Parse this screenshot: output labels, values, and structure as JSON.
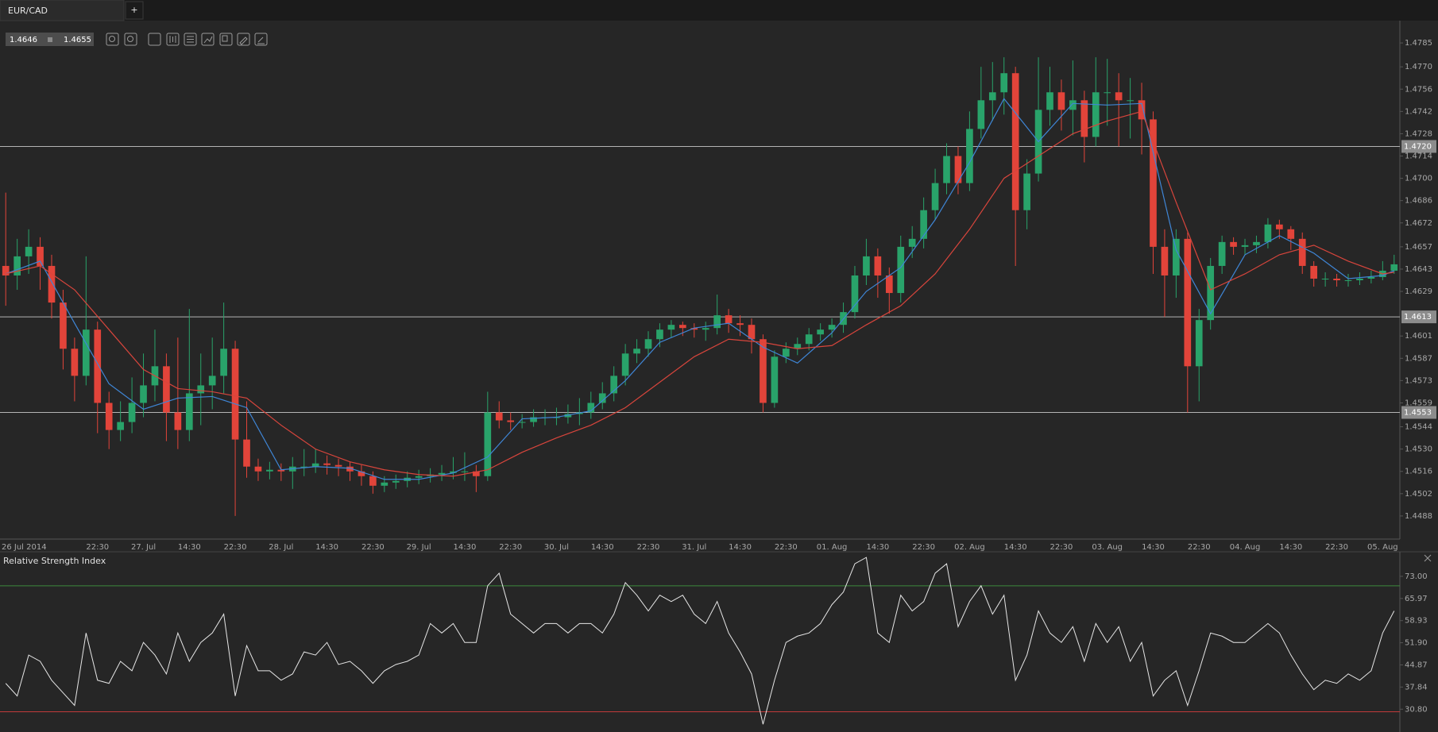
{
  "tab": {
    "title": "EUR/CAD",
    "add": "+"
  },
  "quote": {
    "bid": "1.4646",
    "ask": "1.4655"
  },
  "chart_data": [
    {
      "type": "candlestick",
      "up_color": "#29a36a",
      "down_color": "#e2443a",
      "categories": [
        null,
        "26 Jul 2014",
        null,
        null,
        null,
        null,
        null,
        null,
        "22:30",
        null,
        null,
        null,
        "27. Jul",
        null,
        null,
        null,
        "14:30",
        null,
        null,
        null,
        "22:30",
        null,
        null,
        null,
        "28. Jul",
        null,
        null,
        null,
        "14:30",
        null,
        null,
        null,
        "22:30",
        null,
        null,
        null,
        "29. Jul",
        null,
        null,
        null,
        "14:30",
        null,
        null,
        null,
        "22:30",
        null,
        null,
        null,
        "30. Jul",
        null,
        null,
        null,
        "14:30",
        null,
        null,
        null,
        "22:30",
        null,
        null,
        null,
        "31. Jul",
        null,
        null,
        null,
        "14:30",
        null,
        null,
        null,
        "22:30",
        null,
        null,
        null,
        "01. Aug",
        null,
        null,
        null,
        "14:30",
        null,
        null,
        null,
        "22:30",
        null,
        null,
        null,
        "02. Aug",
        null,
        null,
        null,
        "14:30",
        null,
        null,
        null,
        "22:30",
        null,
        null,
        null,
        "03. Aug",
        null,
        null,
        null,
        "14:30",
        null,
        null,
        null,
        "22:30",
        null,
        null,
        null,
        "04. Aug",
        null,
        null,
        null,
        "14:30",
        null,
        null,
        null,
        "22:30",
        null,
        null,
        null,
        "05. Aug",
        null
      ],
      "open": [
        1.4645,
        1.4639,
        1.4651,
        1.4657,
        1.4645,
        1.4622,
        1.4593,
        1.4576,
        1.4605,
        1.4559,
        1.4542,
        1.4547,
        1.4559,
        1.457,
        1.4582,
        1.4553,
        1.4542,
        1.4565,
        1.457,
        1.4576,
        1.4593,
        1.4536,
        1.4519,
        1.4516,
        1.4517,
        1.4516,
        1.4519,
        1.4519,
        1.4521,
        1.452,
        1.4519,
        1.4516,
        1.4513,
        1.4507,
        1.4509,
        1.451,
        1.4512,
        1.4513,
        1.4514,
        1.4515,
        1.4516,
        1.4516,
        1.4513,
        1.4553,
        1.4548,
        1.4547,
        1.4547,
        1.455,
        1.455,
        1.455,
        1.4552,
        1.4553,
        1.4559,
        1.4565,
        1.4576,
        1.459,
        1.4593,
        1.4599,
        1.4605,
        1.4608,
        1.4606,
        1.4605,
        1.4606,
        1.4614,
        1.4609,
        1.4608,
        1.4599,
        1.4559,
        1.4588,
        1.4593,
        1.4596,
        1.4602,
        1.4605,
        1.4608,
        1.4616,
        1.4639,
        1.4651,
        1.4639,
        1.4628,
        1.4657,
        1.4662,
        1.468,
        1.4697,
        1.4714,
        1.4697,
        1.4731,
        1.4749,
        1.4754,
        1.4766,
        1.468,
        1.4703,
        1.4743,
        1.4754,
        1.4743,
        1.4749,
        1.4726,
        1.4754,
        1.4754,
        1.4749,
        1.4749,
        1.4737,
        1.4657,
        1.4639,
        1.4662,
        1.4582,
        1.4611,
        1.4645,
        1.466,
        1.4657,
        1.4658,
        1.466,
        1.4671,
        1.4668,
        1.4662,
        1.4645,
        1.4637,
        1.4637,
        1.4636,
        1.4636,
        1.4637,
        1.4638,
        1.4642
      ],
      "high": [
        1.4691,
        1.4662,
        1.4668,
        1.4663,
        1.4652,
        1.463,
        1.46,
        1.4651,
        1.461,
        1.4566,
        1.456,
        1.4575,
        1.459,
        1.4605,
        1.459,
        1.46,
        1.4618,
        1.459,
        1.46,
        1.4622,
        1.4598,
        1.456,
        1.4524,
        1.4522,
        1.4521,
        1.4525,
        1.453,
        1.453,
        1.4526,
        1.4524,
        1.4522,
        1.452,
        1.4516,
        1.4513,
        1.4514,
        1.4516,
        1.4517,
        1.4518,
        1.452,
        1.4525,
        1.4528,
        1.452,
        1.4566,
        1.456,
        1.4553,
        1.4552,
        1.4555,
        1.4555,
        1.4556,
        1.4558,
        1.4562,
        1.4566,
        1.4572,
        1.4582,
        1.4596,
        1.4599,
        1.4604,
        1.4609,
        1.4611,
        1.461,
        1.4609,
        1.461,
        1.4627,
        1.4618,
        1.4614,
        1.4612,
        1.4602,
        1.4592,
        1.4597,
        1.46,
        1.4606,
        1.4609,
        1.4612,
        1.4622,
        1.4645,
        1.4662,
        1.4656,
        1.4644,
        1.4664,
        1.467,
        1.4688,
        1.4706,
        1.4722,
        1.472,
        1.4742,
        1.477,
        1.4773,
        1.4776,
        1.477,
        1.4712,
        1.4776,
        1.477,
        1.4762,
        1.4774,
        1.4755,
        1.4776,
        1.4775,
        1.4766,
        1.4763,
        1.476,
        1.4742,
        1.4668,
        1.4668,
        1.4666,
        1.4618,
        1.465,
        1.4664,
        1.4663,
        1.4662,
        1.4664,
        1.4675,
        1.4674,
        1.467,
        1.4666,
        1.4648,
        1.4641,
        1.464,
        1.464,
        1.4641,
        1.4642,
        1.4648,
        1.4652
      ],
      "low": [
        1.462,
        1.463,
        1.464,
        1.463,
        1.4612,
        1.458,
        1.456,
        1.457,
        1.454,
        1.453,
        1.4535,
        1.454,
        1.455,
        1.456,
        1.4535,
        1.453,
        1.4535,
        1.4545,
        1.4555,
        1.4565,
        1.4488,
        1.4512,
        1.451,
        1.4511,
        1.451,
        1.4505,
        1.4513,
        1.4515,
        1.4514,
        1.4513,
        1.451,
        1.4507,
        1.4502,
        1.4503,
        1.4505,
        1.4506,
        1.4508,
        1.4509,
        1.451,
        1.4511,
        1.451,
        1.4503,
        1.451,
        1.4543,
        1.4542,
        1.4543,
        1.4544,
        1.4545,
        1.4545,
        1.4546,
        1.4545,
        1.4549,
        1.4555,
        1.456,
        1.457,
        1.4584,
        1.4588,
        1.4594,
        1.46,
        1.4601,
        1.46,
        1.4598,
        1.4602,
        1.4603,
        1.4601,
        1.459,
        1.4553,
        1.4556,
        1.4584,
        1.4589,
        1.4592,
        1.4598,
        1.46,
        1.4603,
        1.4612,
        1.4633,
        1.4625,
        1.4615,
        1.4622,
        1.465,
        1.4656,
        1.4674,
        1.469,
        1.469,
        1.4692,
        1.4725,
        1.4736,
        1.474,
        1.4645,
        1.4668,
        1.4698,
        1.4733,
        1.473,
        1.4727,
        1.471,
        1.472,
        1.4733,
        1.472,
        1.4725,
        1.4715,
        1.464,
        1.4613,
        1.4625,
        1.4553,
        1.456,
        1.4605,
        1.464,
        1.4652,
        1.4652,
        1.4653,
        1.4656,
        1.4662,
        1.4655,
        1.464,
        1.4632,
        1.4632,
        1.4632,
        1.4632,
        1.4633,
        1.4634,
        1.4636,
        1.464
      ],
      "close": [
        1.4639,
        1.4651,
        1.4657,
        1.4645,
        1.4622,
        1.4593,
        1.4576,
        1.4605,
        1.4559,
        1.4542,
        1.4547,
        1.4559,
        1.457,
        1.4582,
        1.4553,
        1.4542,
        1.4565,
        1.457,
        1.4576,
        1.4593,
        1.4536,
        1.4519,
        1.4516,
        1.4517,
        1.4516,
        1.4519,
        1.4519,
        1.4521,
        1.452,
        1.4519,
        1.4516,
        1.4513,
        1.4507,
        1.4509,
        1.451,
        1.4512,
        1.4513,
        1.4514,
        1.4515,
        1.4516,
        1.4516,
        1.4513,
        1.4553,
        1.4548,
        1.4547,
        1.4547,
        1.455,
        1.455,
        1.455,
        1.4552,
        1.4553,
        1.4559,
        1.4565,
        1.4576,
        1.459,
        1.4593,
        1.4599,
        1.4605,
        1.4608,
        1.4606,
        1.4605,
        1.4606,
        1.4614,
        1.4609,
        1.4608,
        1.4599,
        1.4559,
        1.4588,
        1.4593,
        1.4596,
        1.4602,
        1.4605,
        1.4608,
        1.4616,
        1.4639,
        1.4651,
        1.4639,
        1.4628,
        1.4657,
        1.4662,
        1.468,
        1.4697,
        1.4714,
        1.4697,
        1.4731,
        1.4749,
        1.4754,
        1.4766,
        1.468,
        1.4703,
        1.4743,
        1.4754,
        1.4743,
        1.4749,
        1.4726,
        1.4754,
        1.4754,
        1.4749,
        1.4749,
        1.4737,
        1.4657,
        1.4639,
        1.4662,
        1.4582,
        1.4611,
        1.4645,
        1.466,
        1.4657,
        1.4658,
        1.466,
        1.4671,
        1.4668,
        1.4662,
        1.4645,
        1.4637,
        1.4637,
        1.4636,
        1.4636,
        1.4637,
        1.4638,
        1.4642,
        1.4646
      ],
      "lines": [
        {
          "color": "#3f86d6",
          "x": [
            0,
            3,
            6,
            9,
            12,
            15,
            18,
            21,
            24,
            27,
            30,
            33,
            36,
            39,
            42,
            45,
            48,
            51,
            54,
            57,
            60,
            63,
            66,
            69,
            72,
            75,
            78,
            81,
            84,
            87,
            90,
            93,
            96,
            99,
            102,
            105,
            108,
            111,
            114,
            117,
            120,
            121
          ],
          "values": [
            1.464,
            1.4648,
            1.4609,
            1.4571,
            1.4555,
            1.4562,
            1.4563,
            1.4556,
            1.4517,
            1.4519,
            1.4518,
            1.4511,
            1.4511,
            1.4515,
            1.4525,
            1.4549,
            1.455,
            1.4554,
            1.4573,
            1.4597,
            1.4606,
            1.4609,
            1.4594,
            1.4584,
            1.4603,
            1.4629,
            1.4644,
            1.4674,
            1.471,
            1.475,
            1.4723,
            1.4747,
            1.4746,
            1.4747,
            1.4655,
            1.4615,
            1.4652,
            1.4664,
            1.4653,
            1.4637,
            1.4639,
            1.4642
          ]
        },
        {
          "color": "#d8453c",
          "x": [
            0,
            3,
            6,
            9,
            12,
            15,
            18,
            21,
            24,
            27,
            30,
            33,
            36,
            39,
            42,
            45,
            48,
            51,
            54,
            57,
            60,
            63,
            66,
            69,
            72,
            75,
            78,
            81,
            84,
            87,
            90,
            93,
            96,
            99,
            102,
            105,
            108,
            111,
            114,
            117,
            120,
            121
          ],
          "values": [
            1.464,
            1.4645,
            1.463,
            1.4605,
            1.458,
            1.4568,
            1.4566,
            1.4562,
            1.4545,
            1.453,
            1.4522,
            1.4517,
            1.4514,
            1.4513,
            1.4517,
            1.4528,
            1.4537,
            1.4545,
            1.4556,
            1.4572,
            1.4588,
            1.4599,
            1.4597,
            1.4593,
            1.4595,
            1.4608,
            1.462,
            1.464,
            1.4668,
            1.47,
            1.4714,
            1.4728,
            1.4736,
            1.4742,
            1.4685,
            1.463,
            1.464,
            1.4652,
            1.4658,
            1.4648,
            1.464,
            1.4641
          ]
        }
      ],
      "levels": [
        {
          "value": 1.472,
          "label": "1.4720"
        },
        {
          "value": 1.4613,
          "label": "1.4613"
        },
        {
          "value": 1.4553,
          "label": "1.4553"
        }
      ],
      "level_color": "#b4b4b4",
      "ylim": [
        1.44735,
        1.47975
      ],
      "yticks": [
        1.4785,
        {
          "value": 1.477,
          "label": "1.4770"
        },
        1.4756,
        1.4742,
        1.4728,
        1.4714,
        {
          "value": 1.47,
          "label": "1.4700"
        },
        1.4686,
        1.4672,
        1.4657,
        1.4643,
        1.4629,
        1.4601,
        1.4587,
        1.4573,
        1.4559,
        1.4544,
        {
          "value": 1.453,
          "label": "1.4530"
        },
        1.4516,
        1.4502,
        1.4488
      ],
      "grid": false
    },
    {
      "type": "line",
      "title": "Relative Strength Index",
      "color": "#e6e6e6",
      "values": [
        39,
        35,
        48,
        46,
        40,
        36,
        32,
        55,
        40,
        39,
        46,
        43,
        52,
        48,
        42,
        55,
        46,
        52,
        55,
        61,
        35,
        51,
        43,
        43,
        40,
        42,
        49,
        48,
        52,
        45,
        46,
        43,
        39,
        43,
        45,
        46,
        48,
        58,
        55,
        58,
        52,
        52,
        70,
        74,
        61,
        58,
        55,
        58,
        58,
        55,
        58,
        58,
        55,
        61,
        71,
        67,
        62,
        67,
        65,
        67,
        61,
        58,
        65,
        55,
        49,
        42,
        26,
        40,
        52,
        54,
        55,
        58,
        64,
        68,
        77,
        79,
        55,
        52,
        67,
        62,
        65,
        74,
        77,
        57,
        65,
        70,
        61,
        67,
        40,
        48,
        62,
        55,
        52,
        57,
        46,
        58,
        52,
        57,
        46,
        52,
        35,
        40,
        43,
        32,
        43,
        55,
        54,
        52,
        52,
        55,
        58,
        55,
        48,
        42,
        37,
        40,
        39,
        42,
        40,
        43,
        55,
        62
      ],
      "levels": [
        {
          "value": 70,
          "color": "#3d8a3d"
        },
        {
          "value": 30,
          "color": "#c23a3a"
        }
      ],
      "ylim": [
        24.06,
        80.04
      ],
      "yticks": [
        {
          "value": 73,
          "label": "73.00"
        },
        65.97,
        58.93,
        {
          "value": 51.9,
          "label": "51.90"
        },
        44.87,
        37.84,
        {
          "value": 30.8,
          "label": "30.80"
        }
      ],
      "grid": false
    }
  ]
}
